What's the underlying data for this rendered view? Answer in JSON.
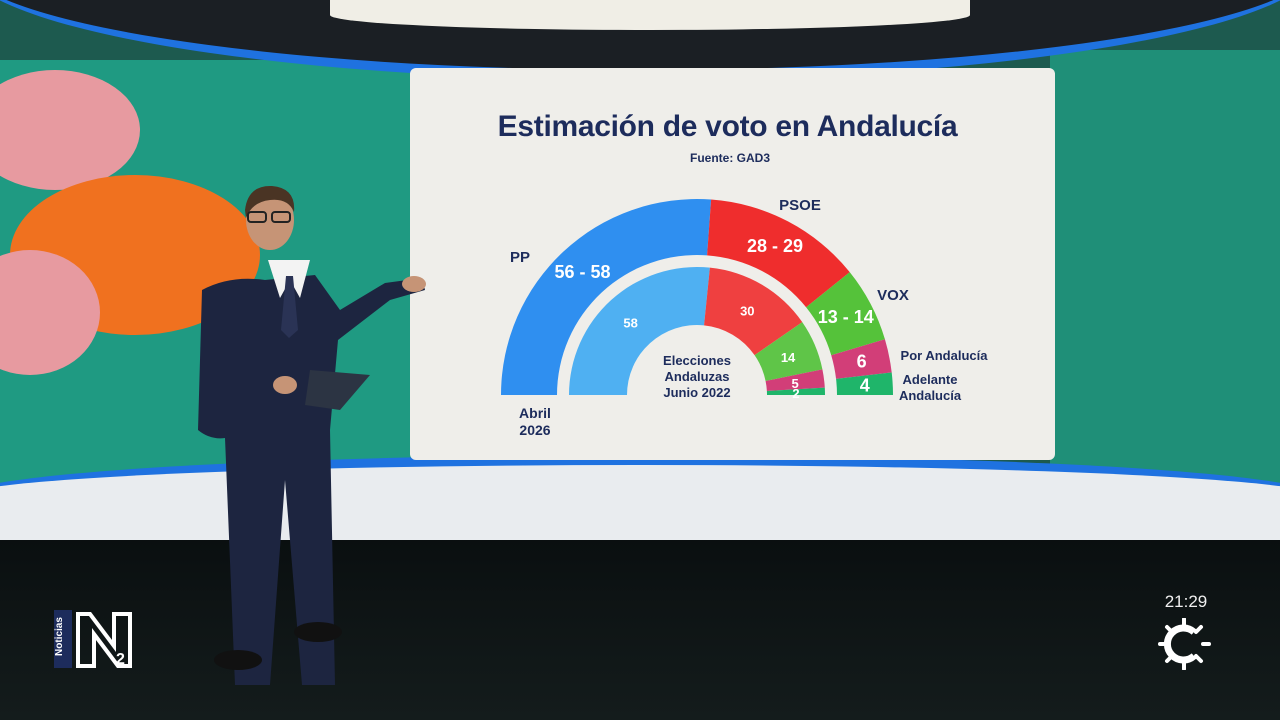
{
  "title": "Estimación de voto en Andalucía",
  "source": "Fuente: GAD3",
  "clock": "21:29",
  "channel_tag": "Noticias",
  "channel_logo_text": "N2",
  "center_label": [
    "Elecciones",
    "Andaluzas",
    "Junio 2022"
  ],
  "outer_ring_label": [
    "Abril",
    "2026"
  ],
  "colors": {
    "PP": "#2f8ff0",
    "PP_inner": "#4fb0f2",
    "PSOE": "#ef2d2d",
    "PSOE_inner": "#ef4040",
    "VOX": "#55c23a",
    "VOX_inner": "#5fc548",
    "Por Andalucía": "#d23e78",
    "Adelante Andalucía": "#1fb56a",
    "text": "#1d2c5c"
  },
  "chart_data": {
    "type": "pie",
    "subtype": "parliament-semicircle",
    "title": "Estimación de voto en Andalucía",
    "source": "Fuente: GAD3",
    "outer_ring": {
      "label": "Abril 2026",
      "parties": [
        {
          "name": "PP",
          "label": "56 - 58",
          "min": 56,
          "max": 58
        },
        {
          "name": "PSOE",
          "label": "28 - 29",
          "min": 28,
          "max": 29
        },
        {
          "name": "VOX",
          "label": "13 - 14",
          "min": 13,
          "max": 14
        },
        {
          "name": "Por Andalucía",
          "label": "6",
          "min": 6,
          "max": 6
        },
        {
          "name": "Adelante Andalucía",
          "label": "4",
          "min": 4,
          "max": 4
        }
      ]
    },
    "inner_ring": {
      "label": "Elecciones Andaluzas Junio 2022",
      "parties": [
        {
          "name": "PP",
          "value": 58
        },
        {
          "name": "PSOE",
          "value": 30
        },
        {
          "name": "VOX",
          "value": 14
        },
        {
          "name": "Por Andalucía",
          "value": 5
        },
        {
          "name": "Adelante Andalucía",
          "value": 2
        }
      ]
    },
    "party_labels": [
      {
        "name": "PP",
        "text": "PP"
      },
      {
        "name": "PSOE",
        "text": "PSOE"
      },
      {
        "name": "VOX",
        "text": "VOX"
      },
      {
        "name": "Por Andalucía",
        "text": "Por Andalucía"
      },
      {
        "name": "Adelante Andalucía",
        "text": [
          "Adelante",
          "Andalucía"
        ]
      }
    ]
  }
}
